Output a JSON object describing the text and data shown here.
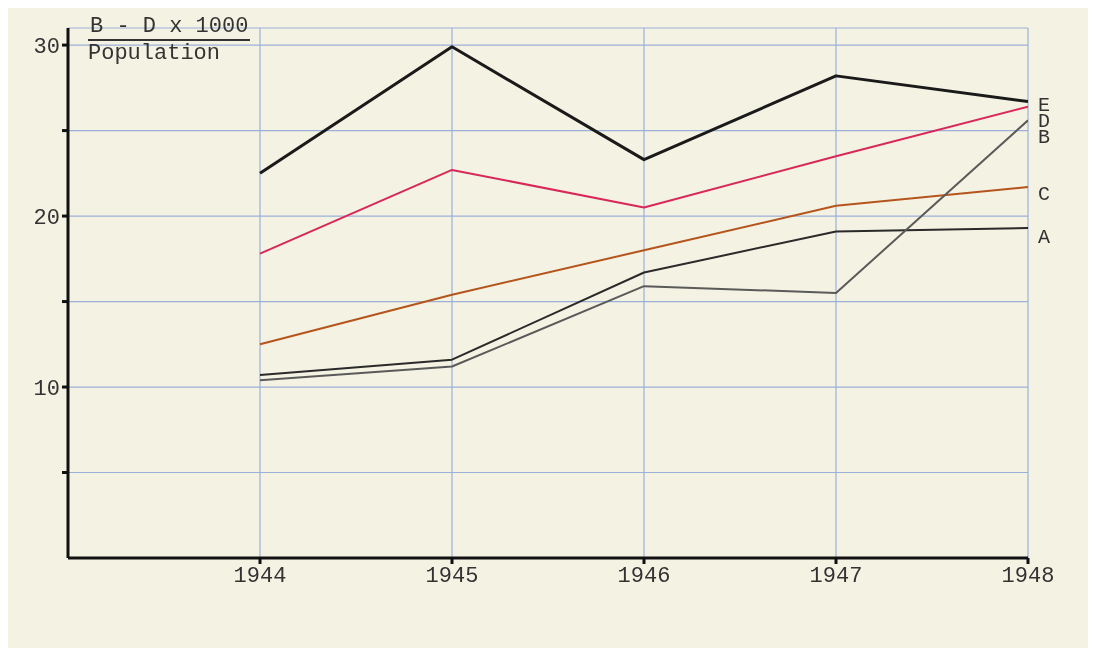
{
  "chart_data": {
    "type": "line",
    "ylabel": "B - D x 1000\nPopulation",
    "x": [
      1944,
      1945,
      1946,
      1947,
      1948
    ],
    "series": [
      {
        "name": "E",
        "color": "#1a1a1a",
        "values": [
          22.5,
          29.9,
          23.3,
          28.2,
          26.7
        ]
      },
      {
        "name": "D",
        "color": "#d8285a",
        "values": [
          17.8,
          22.7,
          20.5,
          23.5,
          26.4
        ]
      },
      {
        "name": "C",
        "color": "#b5541c",
        "values": [
          12.5,
          15.4,
          18.0,
          20.6,
          21.7
        ]
      },
      {
        "name": "A",
        "color": "#2a2a2a",
        "values": [
          10.7,
          11.6,
          16.7,
          19.1,
          19.3
        ]
      },
      {
        "name": "B",
        "color": "#5a5a5a",
        "values": [
          10.4,
          11.2,
          15.9,
          15.5,
          25.6
        ]
      }
    ],
    "xlim": [
      1943,
      1948
    ],
    "xticks": [
      1944,
      1945,
      1946,
      1947,
      1948
    ],
    "ylim": [
      0,
      31
    ],
    "yticks": [
      {
        "value": 5,
        "label": null
      },
      10,
      {
        "value": 15,
        "label": null
      },
      20,
      {
        "value": 25,
        "label": null
      },
      30
    ],
    "grid": true,
    "marker": "none",
    "line_style": "solid"
  }
}
